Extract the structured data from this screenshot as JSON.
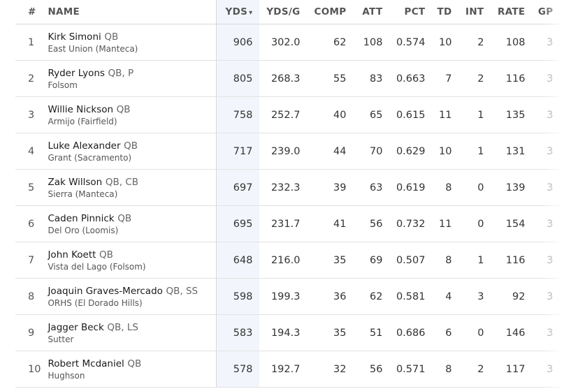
{
  "headers": {
    "rank": "#",
    "name": "NAME",
    "yds": "YDS",
    "ydsg": "YDS/G",
    "comp": "COMP",
    "att": "ATT",
    "pct": "PCT",
    "td": "TD",
    "int": "INT",
    "rate": "RATE",
    "gp": "GP",
    "sort_arrow": "▾"
  },
  "rows": [
    {
      "rank": "1",
      "name": "Kirk Simoni",
      "pos": "QB",
      "school": "East Union (Manteca)",
      "yds": "906",
      "ydsg": "302.0",
      "comp": "62",
      "att": "108",
      "pct": "0.574",
      "td": "10",
      "int": "2",
      "rate": "108",
      "gp": "3"
    },
    {
      "rank": "2",
      "name": "Ryder Lyons",
      "pos": "QB, P",
      "school": "Folsom",
      "yds": "805",
      "ydsg": "268.3",
      "comp": "55",
      "att": "83",
      "pct": "0.663",
      "td": "7",
      "int": "2",
      "rate": "116",
      "gp": "3"
    },
    {
      "rank": "3",
      "name": "Willie Nickson",
      "pos": "QB",
      "school": "Armijo (Fairfield)",
      "yds": "758",
      "ydsg": "252.7",
      "comp": "40",
      "att": "65",
      "pct": "0.615",
      "td": "11",
      "int": "1",
      "rate": "135",
      "gp": "3"
    },
    {
      "rank": "4",
      "name": "Luke Alexander",
      "pos": "QB",
      "school": "Grant (Sacramento)",
      "yds": "717",
      "ydsg": "239.0",
      "comp": "44",
      "att": "70",
      "pct": "0.629",
      "td": "10",
      "int": "1",
      "rate": "131",
      "gp": "3"
    },
    {
      "rank": "5",
      "name": "Zak Willson",
      "pos": "QB, CB",
      "school": "Sierra (Manteca)",
      "yds": "697",
      "ydsg": "232.3",
      "comp": "39",
      "att": "63",
      "pct": "0.619",
      "td": "8",
      "int": "0",
      "rate": "139",
      "gp": "3"
    },
    {
      "rank": "6",
      "name": "Caden Pinnick",
      "pos": "QB",
      "school": "Del Oro (Loomis)",
      "yds": "695",
      "ydsg": "231.7",
      "comp": "41",
      "att": "56",
      "pct": "0.732",
      "td": "11",
      "int": "0",
      "rate": "154",
      "gp": "3"
    },
    {
      "rank": "7",
      "name": "John Koett",
      "pos": "QB",
      "school": "Vista del Lago (Folsom)",
      "yds": "648",
      "ydsg": "216.0",
      "comp": "35",
      "att": "69",
      "pct": "0.507",
      "td": "8",
      "int": "1",
      "rate": "116",
      "gp": "3"
    },
    {
      "rank": "8",
      "name": "Joaquin Graves-Mercado",
      "pos": "QB, SS",
      "school": "ORHS (El Dorado Hills)",
      "yds": "598",
      "ydsg": "199.3",
      "comp": "36",
      "att": "62",
      "pct": "0.581",
      "td": "4",
      "int": "3",
      "rate": "92",
      "gp": "3"
    },
    {
      "rank": "9",
      "name": "Jagger Beck",
      "pos": "QB, LS",
      "school": "Sutter",
      "yds": "583",
      "ydsg": "194.3",
      "comp": "35",
      "att": "51",
      "pct": "0.686",
      "td": "6",
      "int": "0",
      "rate": "146",
      "gp": "3"
    },
    {
      "rank": "10",
      "name": "Robert Mcdaniel",
      "pos": "QB",
      "school": "Hughson",
      "yds": "578",
      "ydsg": "192.7",
      "comp": "32",
      "att": "56",
      "pct": "0.571",
      "td": "8",
      "int": "2",
      "rate": "117",
      "gp": "3"
    }
  ]
}
